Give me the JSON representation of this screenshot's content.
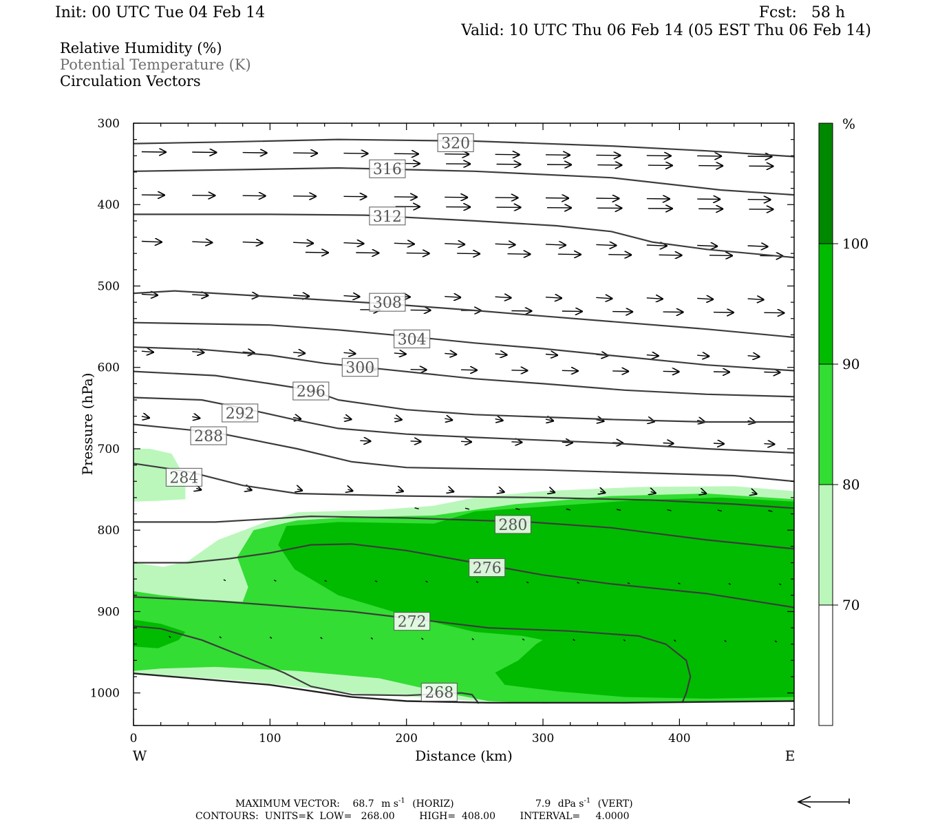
{
  "header": {
    "init": "Init: 00 UTC Tue 04 Feb 14",
    "fcst": "Fcst:   58 h",
    "valid": "Valid: 10 UTC Thu 06 Feb 14 (05 EST Thu 06 Feb 14)",
    "fields": [
      {
        "label": "Relative Humidity (%)",
        "color": "#000000"
      },
      {
        "label": "Potential Temperature (K)",
        "color": "#6e6e6e"
      },
      {
        "label": "Circulation Vectors",
        "color": "#000000"
      }
    ]
  },
  "footer": {
    "max_vector_prefix": "MAXIMUM VECTOR:",
    "horiz_value": "68.7",
    "horiz_unit": "m s",
    "horiz_exp": "-1",
    "horiz_tag": "(HORIZ)",
    "vert_value": "7.9",
    "vert_unit": "dPa s",
    "vert_exp": "-1",
    "vert_tag": "(VERT)",
    "contours": "CONTOURS:  UNITS=K  LOW=   268.00        HIGH=  408.00        INTERVAL=     4.0000"
  },
  "chart_data": {
    "type": "cross-section",
    "xlabel": "Distance (km)",
    "ylabel": "Pressure (hPa)",
    "xlim": [
      0,
      484
    ],
    "ylim": [
      1040,
      300
    ],
    "x_ticks": [
      0,
      100,
      200,
      300,
      400
    ],
    "y_ticks": [
      300,
      400,
      500,
      600,
      700,
      800,
      900,
      1000
    ],
    "x_end_labels": {
      "left": "W",
      "right": "E"
    },
    "colorbar": {
      "unit": "%",
      "levels": [
        70,
        80,
        90,
        100
      ],
      "colors": [
        "#ffffff",
        "#bbf7bb",
        "#33dd33",
        "#00bb00",
        "#008800"
      ]
    },
    "rh_fill": [
      {
        "level": 70,
        "color": "#bbf7bb",
        "points": [
          [
            0,
            700
          ],
          [
            12,
            700
          ],
          [
            28,
            706
          ],
          [
            38,
            736
          ],
          [
            38,
            762
          ],
          [
            18,
            764
          ],
          [
            0,
            765
          ]
        ]
      },
      {
        "level": 70,
        "color": "#bbf7bb",
        "points": [
          [
            0,
            840
          ],
          [
            22,
            845
          ],
          [
            40,
            838
          ],
          [
            62,
            812
          ],
          [
            100,
            788
          ],
          [
            120,
            778
          ],
          [
            180,
            775
          ],
          [
            220,
            770
          ],
          [
            250,
            760
          ],
          [
            300,
            752
          ],
          [
            370,
            747
          ],
          [
            440,
            746
          ],
          [
            484,
            752
          ],
          [
            484,
            1010
          ],
          [
            330,
            1011
          ],
          [
            270,
            1012
          ],
          [
            160,
            1000
          ],
          [
            80,
            985
          ],
          [
            20,
            978
          ],
          [
            0,
            975
          ]
        ]
      },
      {
        "level": 80,
        "color": "#33dd33",
        "points": [
          [
            0,
            875
          ],
          [
            20,
            880
          ],
          [
            50,
            885
          ],
          [
            80,
            888
          ],
          [
            84,
            870
          ],
          [
            76,
            833
          ],
          [
            88,
            800
          ],
          [
            120,
            788
          ],
          [
            160,
            784
          ],
          [
            220,
            782
          ],
          [
            280,
            768
          ],
          [
            350,
            758
          ],
          [
            420,
            755
          ],
          [
            484,
            762
          ],
          [
            484,
            1010
          ],
          [
            360,
            1012
          ],
          [
            300,
            1013
          ],
          [
            260,
            1010
          ],
          [
            220,
            997
          ],
          [
            180,
            982
          ],
          [
            120,
            973
          ],
          [
            60,
            968
          ],
          [
            20,
            970
          ],
          [
            0,
            973
          ]
        ]
      },
      {
        "level": 90,
        "color": "#00bb00",
        "points": [
          [
            106,
            818
          ],
          [
            112,
            795
          ],
          [
            150,
            790
          ],
          [
            220,
            792
          ],
          [
            250,
            777
          ],
          [
            310,
            770
          ],
          [
            370,
            763
          ],
          [
            430,
            760
          ],
          [
            484,
            765
          ],
          [
            484,
            1005
          ],
          [
            420,
            1007
          ],
          [
            360,
            1005
          ],
          [
            310,
            998
          ],
          [
            272,
            990
          ],
          [
            265,
            975
          ],
          [
            282,
            960
          ],
          [
            295,
            940
          ],
          [
            300,
            935
          ],
          [
            285,
            930
          ],
          [
            250,
            925
          ],
          [
            200,
            905
          ],
          [
            150,
            880
          ],
          [
            118,
            848
          ]
        ]
      },
      {
        "level": 90,
        "color": "#00bb00",
        "points": [
          [
            0,
            910
          ],
          [
            20,
            915
          ],
          [
            38,
            925
          ],
          [
            33,
            935
          ],
          [
            18,
            945
          ],
          [
            0,
            943
          ]
        ]
      }
    ],
    "theta_contours": [
      {
        "value": 320,
        "points": [
          [
            0,
            325
          ],
          [
            70,
            323
          ],
          [
            150,
            320
          ],
          [
            250,
            322
          ],
          [
            350,
            328
          ],
          [
            420,
            334
          ],
          [
            484,
            341
          ]
        ],
        "label_at": [
          236,
          324
        ]
      },
      {
        "value": 316,
        "points": [
          [
            0,
            359
          ],
          [
            80,
            357
          ],
          [
            150,
            355
          ],
          [
            250,
            359
          ],
          [
            350,
            367
          ],
          [
            430,
            382
          ],
          [
            484,
            388
          ]
        ],
        "label_at": [
          186,
          356
        ]
      },
      {
        "value": 312,
        "points": [
          [
            0,
            412
          ],
          [
            100,
            412
          ],
          [
            170,
            413
          ],
          [
            250,
            420
          ],
          [
            310,
            426
          ],
          [
            350,
            433
          ],
          [
            380,
            446
          ],
          [
            420,
            455
          ],
          [
            484,
            465
          ]
        ],
        "label_at": [
          186,
          414
        ]
      },
      {
        "value": 308,
        "points": [
          [
            0,
            509
          ],
          [
            30,
            506
          ],
          [
            100,
            513
          ],
          [
            186,
            522
          ],
          [
            250,
            530
          ],
          [
            300,
            537
          ],
          [
            360,
            545
          ],
          [
            420,
            553
          ],
          [
            484,
            563
          ]
        ],
        "label_at": [
          186,
          520
        ]
      },
      {
        "value": 304,
        "points": [
          [
            0,
            545
          ],
          [
            100,
            548
          ],
          [
            150,
            554
          ],
          [
            202,
            562
          ],
          [
            250,
            570
          ],
          [
            300,
            577
          ],
          [
            360,
            587
          ],
          [
            420,
            597
          ],
          [
            484,
            604
          ]
        ],
        "label_at": [
          204,
          565
        ]
      },
      {
        "value": 300,
        "points": [
          [
            0,
            575
          ],
          [
            50,
            578
          ],
          [
            100,
            585
          ],
          [
            140,
            595
          ],
          [
            170,
            600
          ],
          [
            250,
            614
          ],
          [
            300,
            620
          ],
          [
            360,
            628
          ],
          [
            420,
            633
          ],
          [
            484,
            636
          ]
        ],
        "label_at": [
          166,
          600
        ]
      },
      {
        "value": 296,
        "points": [
          [
            0,
            605
          ],
          [
            60,
            610
          ],
          [
            100,
            620
          ],
          [
            130,
            628
          ],
          [
            150,
            640
          ],
          [
            200,
            652
          ],
          [
            250,
            658
          ],
          [
            350,
            664
          ],
          [
            420,
            667
          ],
          [
            484,
            667
          ]
        ],
        "label_at": [
          130,
          629
        ]
      },
      {
        "value": 292,
        "points": [
          [
            0,
            637
          ],
          [
            50,
            640
          ],
          [
            80,
            650
          ],
          [
            120,
            665
          ],
          [
            150,
            675
          ],
          [
            200,
            682
          ],
          [
            250,
            686
          ],
          [
            350,
            693
          ],
          [
            420,
            700
          ],
          [
            484,
            705
          ]
        ],
        "label_at": [
          78,
          656
        ]
      },
      {
        "value": 288,
        "points": [
          [
            0,
            670
          ],
          [
            60,
            680
          ],
          [
            120,
            700
          ],
          [
            160,
            716
          ],
          [
            200,
            723
          ],
          [
            300,
            726
          ],
          [
            380,
            730
          ],
          [
            440,
            733
          ],
          [
            484,
            740
          ]
        ],
        "label_at": [
          55,
          684
        ]
      },
      {
        "value": 284,
        "points": [
          [
            0,
            718
          ],
          [
            40,
            728
          ],
          [
            80,
            745
          ],
          [
            120,
            755
          ],
          [
            200,
            758
          ],
          [
            300,
            760
          ],
          [
            380,
            763
          ],
          [
            440,
            768
          ],
          [
            484,
            773
          ]
        ],
        "label_at": [
          37,
          735
        ]
      },
      {
        "value": 280,
        "points": [
          [
            0,
            790
          ],
          [
            60,
            790
          ],
          [
            100,
            786
          ],
          [
            130,
            783
          ],
          [
            200,
            785
          ],
          [
            290,
            790
          ],
          [
            350,
            797
          ],
          [
            420,
            812
          ],
          [
            484,
            823
          ]
        ],
        "label_at": [
          278,
          793
        ]
      },
      {
        "value": 276,
        "points": [
          [
            0,
            840
          ],
          [
            40,
            840
          ],
          [
            70,
            835
          ],
          [
            100,
            828
          ],
          [
            130,
            818
          ],
          [
            160,
            817
          ],
          [
            200,
            825
          ],
          [
            250,
            840
          ],
          [
            300,
            855
          ],
          [
            350,
            866
          ],
          [
            420,
            878
          ],
          [
            484,
            895
          ]
        ],
        "label_at": [
          259,
          846
        ]
      },
      {
        "value": 272,
        "points": [
          [
            0,
            882
          ],
          [
            60,
            887
          ],
          [
            100,
            892
          ],
          [
            160,
            900
          ],
          [
            200,
            908
          ],
          [
            260,
            920
          ],
          [
            320,
            924
          ],
          [
            370,
            930
          ],
          [
            390,
            940
          ],
          [
            405,
            960
          ],
          [
            408,
            980
          ],
          [
            405,
            1000
          ],
          [
            402,
            1012
          ]
        ],
        "label_at": [
          204,
          912
        ]
      },
      {
        "value": 268,
        "points": [
          [
            0,
            918
          ],
          [
            20,
            921
          ],
          [
            50,
            935
          ],
          [
            80,
            955
          ],
          [
            110,
            975
          ],
          [
            130,
            992
          ],
          [
            160,
            1002
          ],
          [
            200,
            1003
          ],
          [
            240,
            1000
          ],
          [
            248,
            1002
          ],
          [
            253,
            1013
          ]
        ],
        "label_at": [
          224,
          999
        ]
      }
    ],
    "ground_line": [
      [
        0,
        976
      ],
      [
        100,
        990
      ],
      [
        160,
        1005
      ],
      [
        200,
        1010
      ],
      [
        260,
        1012
      ],
      [
        360,
        1012
      ],
      [
        484,
        1010
      ]
    ]
  }
}
